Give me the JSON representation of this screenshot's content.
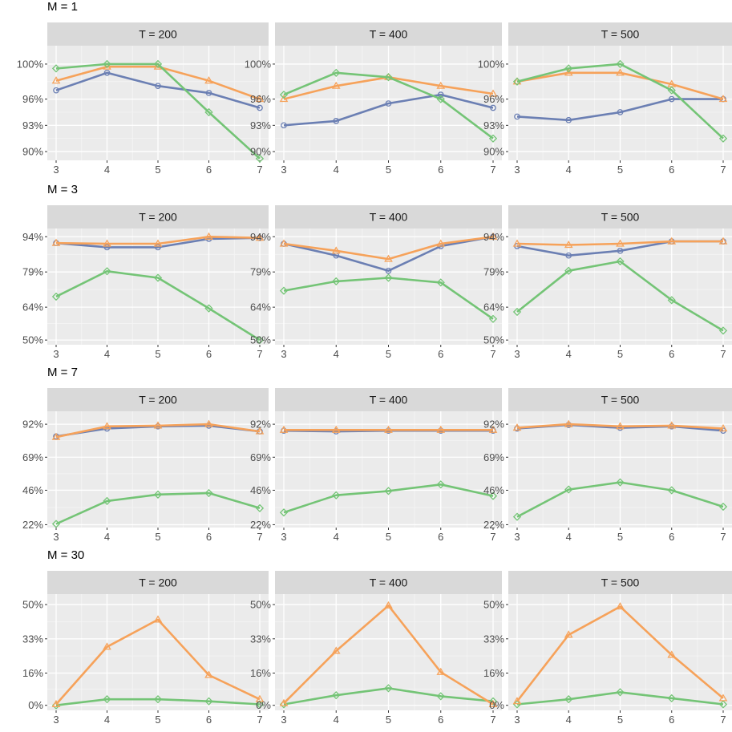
{
  "chart_data": {
    "type": "line",
    "facet_labels": [
      "T =  200",
      "T =  400",
      "T =  500"
    ],
    "x": [
      3,
      4,
      5,
      6,
      7
    ],
    "colors": {
      "blue": "#6b7fb3",
      "orange": "#f6a25a",
      "green": "#74c476"
    },
    "rows": [
      {
        "title": "M = 1",
        "yticks": [
          90,
          93,
          96,
          100
        ],
        "ytick_labels": [
          "90%",
          "93%",
          "96%",
          "100%"
        ],
        "ylim": [
          89,
          102.1
        ],
        "panels": [
          {
            "series": [
              {
                "name": "blue",
                "marker": "circle",
                "values": [
                  97,
                  99,
                  97.5,
                  96.7,
                  95
                ]
              },
              {
                "name": "orange",
                "marker": "triangle",
                "values": [
                  98.1,
                  99.7,
                  99.7,
                  98.1,
                  96
                ]
              },
              {
                "name": "green",
                "marker": "diamond",
                "values": [
                  99.5,
                  100,
                  100,
                  94.5,
                  89.2
                ]
              }
            ]
          },
          {
            "series": [
              {
                "name": "blue",
                "marker": "circle",
                "values": [
                  93,
                  93.5,
                  95.5,
                  96.5,
                  95
                ]
              },
              {
                "name": "orange",
                "marker": "triangle",
                "values": [
                  96,
                  97.5,
                  98.5,
                  97.5,
                  96.6
                ]
              },
              {
                "name": "green",
                "marker": "diamond",
                "values": [
                  96.5,
                  99,
                  98.5,
                  96,
                  91.5
                ]
              }
            ]
          },
          {
            "series": [
              {
                "name": "blue",
                "marker": "circle",
                "values": [
                  94,
                  93.6,
                  94.5,
                  96,
                  96
                ]
              },
              {
                "name": "orange",
                "marker": "triangle",
                "values": [
                  98,
                  99,
                  99,
                  97.7,
                  96
                ]
              },
              {
                "name": "green",
                "marker": "diamond",
                "values": [
                  98,
                  99.5,
                  100,
                  97,
                  91.5
                ]
              }
            ]
          }
        ]
      },
      {
        "title": "M = 3",
        "yticks": [
          50,
          64,
          79,
          94
        ],
        "ytick_labels": [
          "50%",
          "64%",
          "79%",
          "94%"
        ],
        "ylim": [
          48,
          97.5
        ],
        "panels": [
          {
            "series": [
              {
                "name": "blue",
                "marker": "circle",
                "values": [
                  91.3,
                  89.5,
                  89.5,
                  93.1,
                  93.5
                ]
              },
              {
                "name": "orange",
                "marker": "triangle",
                "values": [
                  91.3,
                  91,
                  91,
                  94,
                  93.5
                ]
              },
              {
                "name": "green",
                "marker": "diamond",
                "values": [
                  68.5,
                  79.3,
                  76.5,
                  63.5,
                  50
                ]
              }
            ]
          },
          {
            "series": [
              {
                "name": "blue",
                "marker": "circle",
                "values": [
                  91,
                  86,
                  79.5,
                  90,
                  94
                ]
              },
              {
                "name": "orange",
                "marker": "triangle",
                "values": [
                  91,
                  88,
                  84.5,
                  91,
                  94
                ]
              },
              {
                "name": "green",
                "marker": "diamond",
                "values": [
                  71,
                  75,
                  76.5,
                  74.5,
                  59
                ]
              }
            ]
          },
          {
            "series": [
              {
                "name": "blue",
                "marker": "circle",
                "values": [
                  90,
                  86,
                  88,
                  92,
                  92
                ]
              },
              {
                "name": "orange",
                "marker": "triangle",
                "values": [
                  91,
                  90.5,
                  91,
                  92,
                  92
                ]
              },
              {
                "name": "green",
                "marker": "diamond",
                "values": [
                  62,
                  79.5,
                  83.5,
                  67,
                  54
                ]
              }
            ]
          }
        ]
      },
      {
        "title": "M = 7",
        "yticks": [
          22,
          46,
          69,
          92
        ],
        "ytick_labels": [
          "22%",
          "46%",
          "69%",
          "92%"
        ],
        "ylim": [
          20,
          101
        ],
        "panels": [
          {
            "series": [
              {
                "name": "blue",
                "marker": "circle",
                "values": [
                  83.5,
                  89,
                  90.5,
                  91,
                  87
                ]
              },
              {
                "name": "orange",
                "marker": "triangle",
                "values": [
                  83,
                  90.5,
                  91,
                  92,
                  87
                ]
              },
              {
                "name": "green",
                "marker": "diamond",
                "values": [
                  22.5,
                  38.5,
                  43,
                  44,
                  33.5
                ]
              }
            ]
          },
          {
            "series": [
              {
                "name": "blue",
                "marker": "circle",
                "values": [
                  87.5,
                  87,
                  87.5,
                  87.5,
                  87.5
                ]
              },
              {
                "name": "orange",
                "marker": "triangle",
                "values": [
                  88,
                  88,
                  88,
                  88,
                  88
                ]
              },
              {
                "name": "green",
                "marker": "diamond",
                "values": [
                  30.5,
                  42.5,
                  45.5,
                  50,
                  42
                ]
              }
            ]
          },
          {
            "series": [
              {
                "name": "blue",
                "marker": "circle",
                "values": [
                  89,
                  91.5,
                  89.5,
                  90.5,
                  87.5
                ]
              },
              {
                "name": "orange",
                "marker": "triangle",
                "values": [
                  89.5,
                  92,
                  90.5,
                  91,
                  89
                ]
              },
              {
                "name": "green",
                "marker": "diamond",
                "values": [
                  27.5,
                  46.5,
                  51.5,
                  46,
                  34.5
                ]
              }
            ]
          }
        ]
      },
      {
        "title": "M = 30",
        "yticks": [
          0,
          16,
          33,
          50
        ],
        "ytick_labels": [
          "0%",
          "16%",
          "33%",
          "50%"
        ],
        "ylim": [
          -2.5,
          55.2
        ],
        "panels": [
          {
            "series": [
              {
                "name": "green",
                "marker": "diamond",
                "values": [
                  0,
                  3,
                  3,
                  2,
                  0.5
                ]
              },
              {
                "name": "orange",
                "marker": "triangle",
                "values": [
                  0.5,
                  29,
                  42.5,
                  15,
                  3
                ]
              }
            ]
          },
          {
            "series": [
              {
                "name": "green",
                "marker": "diamond",
                "values": [
                  0.5,
                  5,
                  8.5,
                  4.5,
                  2
                ]
              },
              {
                "name": "orange",
                "marker": "triangle",
                "values": [
                  1,
                  27,
                  49.5,
                  16.5,
                  0.5
                ]
              }
            ]
          },
          {
            "series": [
              {
                "name": "green",
                "marker": "diamond",
                "values": [
                  0.5,
                  3,
                  6.5,
                  3.5,
                  0.5
                ]
              },
              {
                "name": "orange",
                "marker": "triangle",
                "values": [
                  2,
                  35,
                  49,
                  25,
                  3.5
                ]
              }
            ]
          }
        ]
      }
    ]
  }
}
